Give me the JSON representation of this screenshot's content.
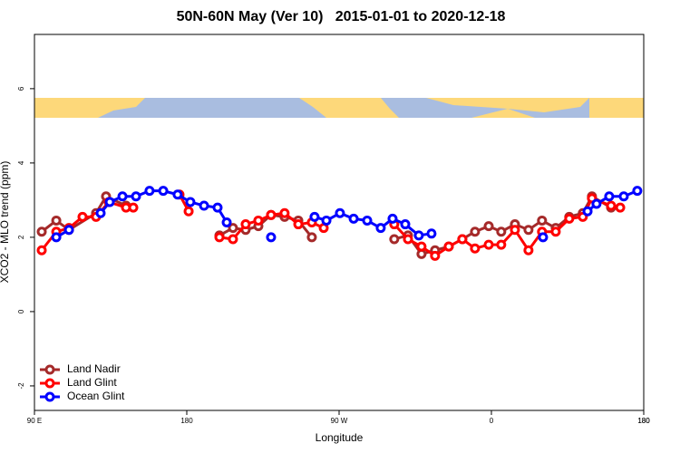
{
  "chart_data": {
    "type": "line",
    "title": "50N-60N May (Ver 10)   2015-01-01 to 2020-12-18",
    "x_label": "Longitude",
    "y_label": "XCO2 - MLO trend (ppm)",
    "xlim": [
      90,
      450
    ],
    "ylim": [
      -2.66,
      7.46
    ],
    "xticks": [
      {
        "value": 90,
        "label": "90 E"
      },
      180,
      {
        "value": 270,
        "label": "90 W"
      },
      {
        "value": 360,
        "label": "0"
      },
      {
        "value": 450,
        "label": "180"
      },
      {
        "value": 450,
        "label": "180"
      }
    ],
    "yticks": [
      -2,
      0,
      2,
      4,
      6
    ],
    "legend": "bottom-left",
    "series": [
      {
        "name": "Land Nadir",
        "color": "#a52a2a",
        "x": [
          94.3,
          102.9,
          110.4,
          126.4,
          132.3,
          144.1,
          null,
          199.3,
          207.3,
          214.8,
          222.3,
          229.8,
          237.8,
          245.9,
          253.9,
          null,
          302.6,
          310.7,
          318.7,
          326.7,
          334.8,
          342.8,
          350.3,
          358.4,
          365.8,
          373.9,
          381.9,
          389.9,
          398.0,
          406.0,
          414.0,
          419.4,
          430.7
        ],
        "values": [
          2.15,
          2.45,
          2.2,
          2.65,
          3.1,
          2.85,
          null,
          2.05,
          2.25,
          2.2,
          2.3,
          2.6,
          2.55,
          2.45,
          2.0,
          null,
          1.95,
          2.05,
          1.55,
          1.65,
          1.75,
          1.95,
          2.15,
          2.3,
          2.15,
          2.35,
          2.2,
          2.45,
          2.25,
          2.55,
          2.65,
          3.1,
          2.8
        ]
      },
      {
        "name": "Land Glint",
        "color": "#ff0000",
        "x": [
          94.3,
          102.9,
          110.4,
          118.4,
          126.4,
          133.9,
          144.1,
          148.4,
          null,
          175.7,
          181.1,
          null,
          199.3,
          207.3,
          214.8,
          222.3,
          229.8,
          237.8,
          245.9,
          253.9,
          260.9,
          null,
          302.6,
          310.7,
          318.7,
          326.7,
          334.8,
          342.8,
          350.3,
          358.4,
          365.8,
          373.9,
          381.9,
          389.9,
          398.0,
          406.0,
          414.0,
          419.4,
          430.7,
          436.1
        ],
        "values": [
          1.65,
          2.15,
          2.25,
          2.55,
          2.55,
          2.95,
          2.8,
          2.8,
          null,
          3.15,
          2.7,
          null,
          2.0,
          1.95,
          2.35,
          2.45,
          2.6,
          2.65,
          2.35,
          2.4,
          2.25,
          null,
          2.35,
          1.95,
          1.75,
          1.5,
          1.75,
          1.95,
          1.7,
          1.8,
          1.8,
          2.2,
          1.65,
          2.15,
          2.15,
          2.5,
          2.55,
          3.05,
          2.85,
          2.8
        ]
      },
      {
        "name": "Ocean Glint",
        "color": "#0000ff",
        "x": [
          102.9,
          110.4,
          null,
          129.1,
          134.5,
          142.0,
          150.0,
          158.0,
          166.1,
          174.6,
          182.1,
          190.2,
          198.2,
          203.6,
          null,
          229.8,
          null,
          255.5,
          262.5,
          270.5,
          278.6,
          286.6,
          294.6,
          301.6,
          309.1,
          317.1,
          324.6,
          null,
          390.5,
          null,
          416.8,
          422.1,
          429.6,
          438.2,
          446.2
        ],
        "values": [
          2.0,
          2.2,
          null,
          2.65,
          2.95,
          3.1,
          3.1,
          3.25,
          3.25,
          3.15,
          2.95,
          2.85,
          2.8,
          2.4,
          null,
          2.0,
          null,
          2.55,
          2.45,
          2.65,
          2.5,
          2.45,
          2.25,
          2.5,
          2.35,
          2.05,
          2.1,
          null,
          2.0,
          null,
          2.7,
          2.9,
          3.1,
          3.1,
          3.25
        ]
      }
    ]
  }
}
